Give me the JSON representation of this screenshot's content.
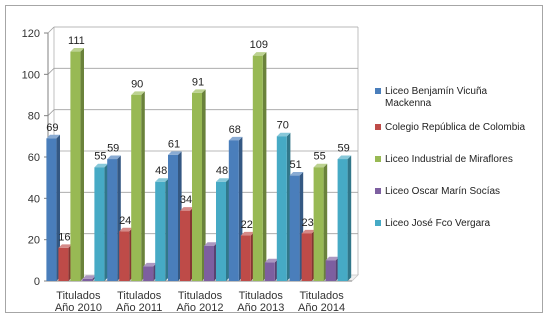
{
  "chart_data": {
    "type": "bar",
    "style": "3d-clustered",
    "categories": [
      [
        "Titulados",
        "Año 2010"
      ],
      [
        "Titulados",
        "Año 2011"
      ],
      [
        "Titulados",
        "Año 2012"
      ],
      [
        "Titulados",
        "Año 2013"
      ],
      [
        "Titulados",
        "Año 2014"
      ]
    ],
    "series": [
      {
        "name": "Liceo Benjamín Vicuña Mackenna",
        "legend_lines": [
          "Liceo Benjamín Vicuña",
          "Mackenna"
        ],
        "color": "#4a7ebb",
        "values": [
          69,
          59,
          61,
          68,
          51
        ],
        "labels": [
          "69",
          "59",
          "61",
          "68",
          "51"
        ]
      },
      {
        "name": "Colegio República de Colombia",
        "legend_lines": [
          "Colegio República de Colombia"
        ],
        "color": "#be4b48",
        "values": [
          16,
          24,
          34,
          22,
          23
        ],
        "labels": [
          "16",
          "24",
          "34",
          "22",
          "23"
        ]
      },
      {
        "name": "Liceo Industrial de Miraflores",
        "legend_lines": [
          "Liceo Industrial de Miraflores"
        ],
        "color": "#98b954",
        "values": [
          111,
          90,
          91,
          109,
          55
        ],
        "labels": [
          "111",
          "90",
          "91",
          "109",
          "55"
        ]
      },
      {
        "name": "Liceo Oscar Marín Socías",
        "legend_lines": [
          "Liceo Oscar Marín Socías"
        ],
        "color": "#7d5fa0",
        "values": [
          1,
          7,
          17,
          9,
          10
        ],
        "labels": [
          "",
          "",
          "",
          "",
          ""
        ]
      },
      {
        "name": "Liceo José Fco Vergara",
        "legend_lines": [
          "Liceo José Fco Vergara"
        ],
        "color": "#46aac5",
        "values": [
          55,
          48,
          48,
          70,
          59
        ],
        "labels": [
          "55",
          "48",
          "48",
          "70",
          "59"
        ]
      }
    ],
    "yticks": [
      0,
      20,
      40,
      60,
      80,
      100,
      120
    ],
    "ylim": [
      0,
      120
    ],
    "grid": true,
    "legend_position": "right",
    "title": "",
    "xlabel": "",
    "ylabel": ""
  }
}
